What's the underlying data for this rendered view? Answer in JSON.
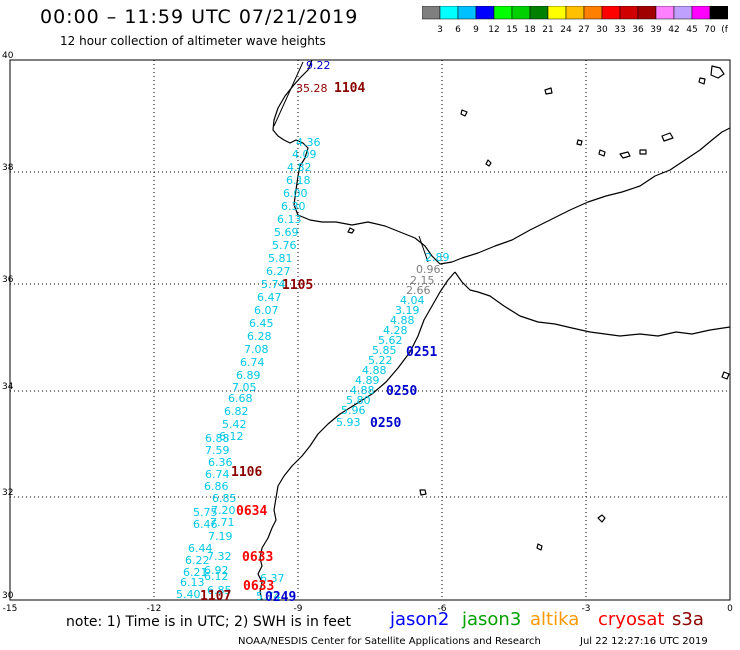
{
  "header": {
    "title": "00:00 – 11:59 UTC 07/21/2019",
    "subtitle": "12 hour collection of altimeter wave heights"
  },
  "legend": {
    "colors": [
      "#7f7f7f",
      "#00ffff",
      "#00c0ff",
      "#0000ff",
      "#00ff00",
      "#00d000",
      "#008000",
      "#ffff00",
      "#ffc000",
      "#ff8000",
      "#ff0000",
      "#d00000",
      "#a00000",
      "#ff80ff",
      "#c0a0ff",
      "#ff00ff",
      "#000000"
    ],
    "labels": [
      "3",
      "6",
      "9",
      "12",
      "15",
      "18",
      "21",
      "24",
      "27",
      "30",
      "33",
      "36",
      "39",
      "42",
      "45",
      "70",
      "(ft)"
    ]
  },
  "axes": {
    "lat_labels": [
      "40",
      "38",
      "36",
      "34",
      "32",
      "30"
    ],
    "lon_labels": [
      "-15",
      "-12",
      "-9",
      "-6",
      "-3",
      "0"
    ]
  },
  "tracks": {
    "west_cyan": [
      "4.36",
      "4.09",
      "4.82",
      "6.18",
      "6.00",
      "6.30",
      "6.13",
      "5.69",
      "5.76",
      "5.81",
      "6.27",
      "5.74",
      "6.47",
      "6.07",
      "6.45",
      "6.28",
      "7.08",
      "6.74",
      "6.89",
      "7.05",
      "6.68",
      "6.82",
      "5.42",
      "6.12",
      "6.88",
      "7.59",
      "6.36",
      "6.74",
      "6.86",
      "6.85",
      "7.20",
      "5.75",
      "7.71",
      "6.46",
      "7.19",
      "6.44",
      "7.32",
      "6.22",
      "6.92",
      "6.21",
      "6.12",
      "6.13",
      "6.85",
      "5.40",
      "6.37",
      "5.74"
    ],
    "east_cyan": [
      "2.89",
      "4.04",
      "3.19",
      "4.88",
      "4.28",
      "5.62",
      "5.85",
      "5.22",
      "4.88",
      "4.89",
      "4.88",
      "5.80",
      "5.96",
      "5.93"
    ],
    "gray": [
      "0.96",
      "2.15",
      "2.66"
    ],
    "top_blue": "9.22",
    "top_red": "35.28"
  },
  "time_labels": [
    {
      "text": "1104",
      "color": "#8b0000"
    },
    {
      "text": "1105",
      "color": "#8b0000"
    },
    {
      "text": "1106",
      "color": "#8b0000"
    },
    {
      "text": "1107",
      "color": "#8b0000"
    },
    {
      "text": "0634",
      "color": "#ff0000"
    },
    {
      "text": "0633",
      "color": "#ff0000"
    },
    {
      "text": "0633",
      "color": "#ff0000"
    },
    {
      "text": "0251",
      "color": "#0000cd"
    },
    {
      "text": "0250",
      "color": "#0000cd"
    },
    {
      "text": "0250",
      "color": "#0000cd"
    },
    {
      "text": "0249",
      "color": "#0000cd"
    }
  ],
  "note": "note: 1) Time is in UTC; 2) SWH is in feet",
  "satellites": [
    {
      "name": "jason2",
      "color": "#0000ff"
    },
    {
      "name": "jason3",
      "color": "#00a000"
    },
    {
      "name": "altika",
      "color": "#ff9900"
    },
    {
      "name": "cryosat",
      "color": "#ff0000"
    },
    {
      "name": "s3a",
      "color": "#8b0000"
    }
  ],
  "footer": {
    "left": "NOAA/NESDIS Center for Satellite Applications and Research",
    "right": "Jul 22 12:27:16 UTC 2019"
  }
}
